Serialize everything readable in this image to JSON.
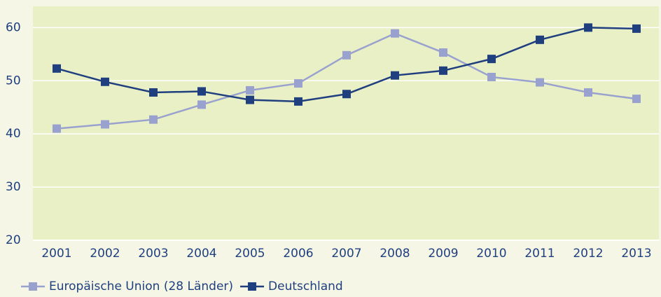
{
  "chart_data": {
    "type": "line",
    "categories": [
      "2001",
      "2002",
      "2003",
      "2004",
      "2005",
      "2006",
      "2007",
      "2008",
      "2009",
      "2010",
      "2011",
      "2012",
      "2013"
    ],
    "series": [
      {
        "name": "Europäische Union (28 Länder)",
        "color": "#99a2cf",
        "values": [
          41.0,
          41.8,
          42.7,
          45.5,
          48.2,
          49.5,
          54.8,
          58.9,
          55.3,
          50.7,
          49.7,
          47.8,
          46.6
        ]
      },
      {
        "name": "Deutschland",
        "color": "#1f3f7f",
        "values": [
          52.3,
          49.8,
          47.8,
          48.0,
          46.4,
          46.1,
          47.5,
          51.0,
          51.9,
          54.1,
          57.7,
          60.0,
          59.8
        ]
      }
    ],
    "ylim": [
      20,
      64
    ],
    "yticks": [
      20,
      30,
      40,
      50,
      60
    ],
    "grid": true,
    "legend": "bottom-left"
  }
}
